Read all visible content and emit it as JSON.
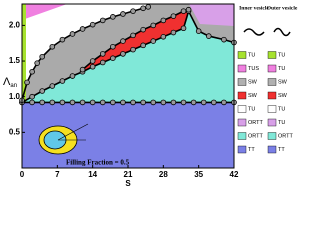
{
  "chart_data": {
    "type": "line",
    "x_label": "S",
    "y_label": "Λ",
    "y_label_sub": "an",
    "xlim": [
      0,
      42
    ],
    "ylim": [
      0,
      2.3
    ],
    "xticks": [
      0,
      7,
      14,
      21,
      28,
      35,
      42
    ],
    "yticks": [
      {
        "value": 0.5,
        "label": "0.5"
      },
      {
        "value": 1,
        "label": "1.0"
      },
      {
        "value": 1.5,
        "label": "1.5"
      },
      {
        "value": 2,
        "label": "2.0"
      }
    ],
    "annotation": "Filling Fraction = 0.5",
    "background": "#aaaaaa",
    "series": [
      {
        "fill": "#7b80e6",
        "x": [
          0,
          2,
          4,
          6,
          8,
          10,
          12,
          14,
          16,
          18,
          20,
          22,
          24,
          26,
          28,
          30,
          32,
          34,
          36,
          38,
          40,
          42
        ],
        "values": [
          0.92,
          0.92,
          0.92,
          0.92,
          0.92,
          0.92,
          0.92,
          0.92,
          0.92,
          0.92,
          0.92,
          0.92,
          0.92,
          0.92,
          0.92,
          0.92,
          0.92,
          0.92,
          0.92,
          0.92,
          0.92,
          0.92
        ]
      },
      {
        "fill": "#80e8d8",
        "x": [
          0,
          2,
          4,
          6,
          8,
          10,
          12,
          14,
          16,
          18,
          20,
          22,
          24,
          26,
          28,
          30,
          32,
          33,
          35,
          37,
          40,
          42
        ],
        "values": [
          0.92,
          1.0,
          1.08,
          1.15,
          1.22,
          1.29,
          1.35,
          1.42,
          1.48,
          1.54,
          1.6,
          1.66,
          1.72,
          1.78,
          1.84,
          1.9,
          1.96,
          2.2,
          1.92,
          1.85,
          1.8,
          1.76
        ]
      },
      {
        "fill": "#f03030",
        "x": [
          12,
          14,
          16,
          18,
          20,
          22,
          24,
          26,
          28,
          30,
          32,
          33
        ],
        "values": [
          1.38,
          1.5,
          1.6,
          1.7,
          1.78,
          1.86,
          1.94,
          2.0,
          2.07,
          2.13,
          2.2,
          2.22
        ]
      },
      {
        "fill": "#ffffff",
        "x": [
          0,
          1,
          2,
          3,
          4,
          6,
          8,
          10,
          12,
          14,
          16,
          18,
          20,
          22,
          24,
          25
        ],
        "values": [
          0.95,
          1.2,
          1.35,
          1.47,
          1.56,
          1.7,
          1.8,
          1.88,
          1.95,
          2.01,
          2.07,
          2.12,
          2.16,
          2.2,
          2.24,
          2.26
        ]
      }
    ],
    "legend": {
      "inner_title": "Inner vesicle",
      "outer_title": "Outer vesicle",
      "rows": [
        {
          "inner": "TU",
          "outer": "TU",
          "color": "#a6e22e"
        },
        {
          "inner": "TUS",
          "outer": "TU",
          "color": "#f080e0"
        },
        {
          "inner": "SW",
          "outer": "SW",
          "color": "#b0b0b0"
        },
        {
          "inner": "SW",
          "outer": "SW",
          "color": "#f03030"
        },
        {
          "inner": "TU",
          "outer": "TU",
          "color": "#ffffff"
        },
        {
          "inner": "ORTT",
          "outer": "TU",
          "color": "#d8a0e8"
        },
        {
          "inner": "ORTT",
          "outer": "ORTT",
          "color": "#80e8d8"
        },
        {
          "inner": "TT",
          "outer": "TT",
          "color": "#7b80e6"
        }
      ]
    }
  }
}
